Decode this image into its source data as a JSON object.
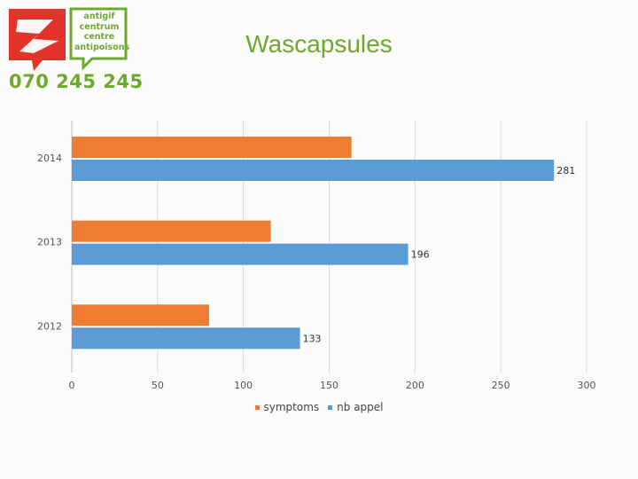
{
  "logo": {
    "lines": [
      "antigif",
      "centrum",
      "centre",
      "antipoisons"
    ],
    "phone": "070 245 245",
    "icon": "poison-center-logo-icon"
  },
  "colors": {
    "brand_green": "#6fa82f",
    "brand_red": "#e2332b",
    "symptoms": "#ed7d31",
    "nb_appel": "#5b9bd5"
  },
  "chart_data": {
    "type": "bar",
    "orientation": "horizontal",
    "title": "Wascapsules",
    "categories": [
      "2014",
      "2013",
      "2012"
    ],
    "series": [
      {
        "name": "symptoms",
        "values": [
          163,
          116,
          80
        ],
        "color": "#ed7d31"
      },
      {
        "name": "nb appel",
        "values": [
          281,
          196,
          133
        ],
        "color": "#5b9bd5",
        "data_labels": [
          "281",
          "196",
          "133"
        ]
      }
    ],
    "xlim": [
      0,
      300
    ],
    "xticks": [
      "0",
      "50",
      "100",
      "150",
      "200",
      "250",
      "300"
    ],
    "grid": true,
    "legend": "bottom"
  }
}
